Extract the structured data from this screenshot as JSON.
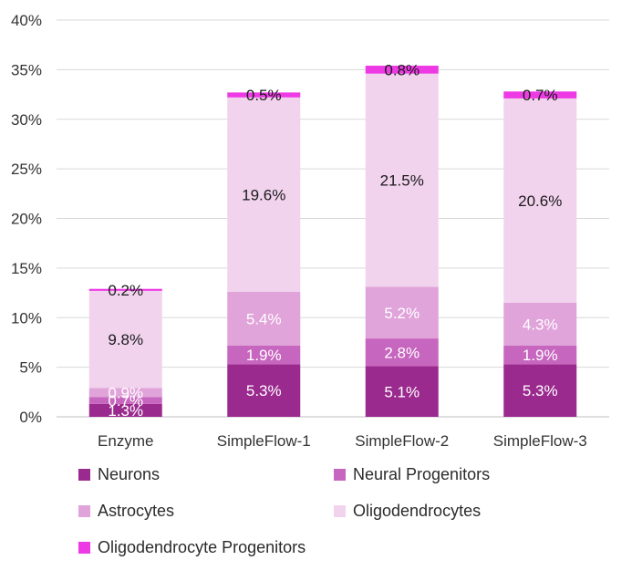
{
  "chart_data": {
    "type": "bar",
    "stacked": true,
    "categories": [
      "Enzyme",
      "SimpleFlow-1",
      "SimpleFlow-2",
      "SimpleFlow-3"
    ],
    "series": [
      {
        "name": "Neurons",
        "color": "#9B2A8E",
        "label_color": "#ffffff",
        "values": [
          1.3,
          5.3,
          5.1,
          5.3
        ],
        "labels": [
          "1.3%",
          "5.3%",
          "5.1%",
          "5.3%"
        ]
      },
      {
        "name": "Neural Progenitors",
        "color": "#C766BE",
        "label_color": "#ffffff",
        "values": [
          0.7,
          1.9,
          2.8,
          1.9
        ],
        "labels": [
          "0.7%",
          "1.9%",
          "2.8%",
          "1.9%"
        ]
      },
      {
        "name": "Astrocytes",
        "color": "#E0A4DA",
        "label_color": "#ffffff",
        "values": [
          0.9,
          5.4,
          5.2,
          4.3
        ],
        "labels": [
          "0.9%",
          "5.4%",
          "5.2%",
          "4.3%"
        ]
      },
      {
        "name": "Oligodendrocytes",
        "color": "#F2D3EE",
        "label_color": "#1a1a1a",
        "values": [
          9.8,
          19.6,
          21.5,
          20.6
        ],
        "labels": [
          "9.8%",
          "19.6%",
          "21.5%",
          "20.6%"
        ]
      },
      {
        "name": "Oligodendrocyte Progenitors",
        "color": "#EE3AE5",
        "label_color": "#1a1a1a",
        "values": [
          0.2,
          0.5,
          0.8,
          0.7
        ],
        "labels": [
          "0.2%",
          "0.5%",
          "0.8%",
          "0.7%"
        ]
      }
    ],
    "ylim": [
      0,
      40
    ],
    "yticks": [
      0,
      5,
      10,
      15,
      20,
      25,
      30,
      35,
      40
    ],
    "ytick_labels": [
      "0%",
      "5%",
      "10%",
      "15%",
      "20%",
      "25%",
      "30%",
      "35%",
      "40%"
    ],
    "title": "",
    "xlabel": "",
    "ylabel": "",
    "grid": true,
    "legend_position": "bottom"
  }
}
